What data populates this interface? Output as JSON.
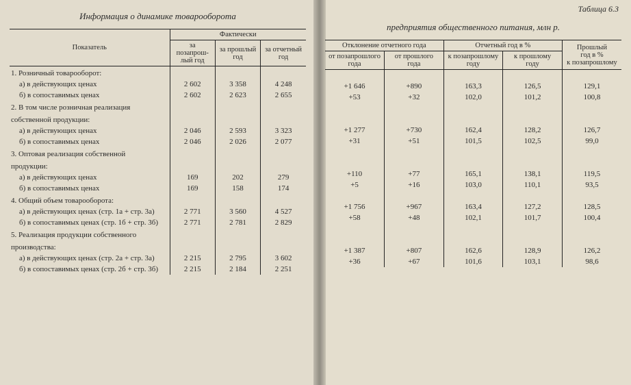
{
  "title_left": "Информация о динамике товарооборота",
  "title_right": "предприятия общественного питания, млн р.",
  "table_label": "Таблица 6.3",
  "left_head": {
    "indicator": "Показатель",
    "actual": "Фактически",
    "y1": "за позапрош-\nлый год",
    "y2": "за прошлый\nгод",
    "y3": "за отчетный\nгод"
  },
  "right_head": {
    "dev": "Отклонение отчетного года",
    "pct": "Отчетный год в %",
    "d1": "от позапрошлого\nгода",
    "d2": "от прошлого\nгода",
    "p1": "к позапрошлому\nгоду",
    "p2": "к прошлому\nгоду",
    "last": "Прошлый\nгод в %\nк позапрошлому"
  },
  "rows": [
    {
      "label": "1. Розничный товарооборот:",
      "section": true
    },
    {
      "label": "а) в действующих ценах",
      "sub": true,
      "y1": "2 602",
      "y2": "3 358",
      "y3": "4 248",
      "d1": "+1 646",
      "d2": "+890",
      "p1": "163,3",
      "p2": "126,5",
      "pl": "129,1"
    },
    {
      "label": "б) в сопоставимых ценах",
      "sub": true,
      "y1": "2 602",
      "y2": "2 623",
      "y3": "2 655",
      "d1": "+53",
      "d2": "+32",
      "p1": "102,0",
      "p2": "101,2",
      "pl": "100,8"
    },
    {
      "label": "2. В том числе розничная реализация",
      "section": true
    },
    {
      "label": "собственной продукции:",
      "section": true,
      "cont": true
    },
    {
      "label": "а) в действующих ценах",
      "sub": true,
      "y1": "2 046",
      "y2": "2 593",
      "y3": "3 323",
      "d1": "+1 277",
      "d2": "+730",
      "p1": "162,4",
      "p2": "128,2",
      "pl": "126,7"
    },
    {
      "label": "б) в сопоставимых ценах",
      "sub": true,
      "y1": "2 046",
      "y2": "2 026",
      "y3": "2 077",
      "d1": "+31",
      "d2": "+51",
      "p1": "101,5",
      "p2": "102,5",
      "pl": "99,0"
    },
    {
      "label": "3. Оптовая реализация собственной",
      "section": true
    },
    {
      "label": "продукции:",
      "section": true,
      "cont": true
    },
    {
      "label": "а) в действующих ценах",
      "sub": true,
      "y1": "169",
      "y2": "202",
      "y3": "279",
      "d1": "+110",
      "d2": "+77",
      "p1": "165,1",
      "p2": "138,1",
      "pl": "119,5"
    },
    {
      "label": "б) в сопоставимых ценах",
      "sub": true,
      "y1": "169",
      "y2": "158",
      "y3": "174",
      "d1": "+5",
      "d2": "+16",
      "p1": "103,0",
      "p2": "110,1",
      "pl": "93,5"
    },
    {
      "label": "4. Общий объем товарооборота:",
      "section": true
    },
    {
      "label": "а) в действующих ценах (стр. 1а + стр. 3а)",
      "sub": true,
      "y1": "2 771",
      "y2": "3 560",
      "y3": "4 527",
      "d1": "+1 756",
      "d2": "+967",
      "p1": "163,4",
      "p2": "127,2",
      "pl": "128,5"
    },
    {
      "label": "б) в сопоставимых ценах (стр. 1б + стр. 3б)",
      "sub": true,
      "y1": "2 771",
      "y2": "2 781",
      "y3": "2 829",
      "d1": "+58",
      "d2": "+48",
      "p1": "102,1",
      "p2": "101,7",
      "pl": "100,4"
    },
    {
      "label": "5. Реализация продукции собственного",
      "section": true
    },
    {
      "label": "производства:",
      "section": true,
      "cont": true
    },
    {
      "label": "а)  в действующих ценах (стр. 2а + стр. 3а)",
      "sub": true,
      "y1": "2 215",
      "y2": "2 795",
      "y3": "3 602",
      "d1": "+1 387",
      "d2": "+807",
      "p1": "162,6",
      "p2": "128,9",
      "pl": "126,2"
    },
    {
      "label": "б) в сопоставимых ценах (стр. 2б + стр. 3б)",
      "sub": true,
      "y1": "2 215",
      "y2": "2 184",
      "y3": "2 251",
      "d1": "+36",
      "d2": "+67",
      "p1": "101,6",
      "p2": "103,1",
      "pl": "98,6"
    }
  ]
}
